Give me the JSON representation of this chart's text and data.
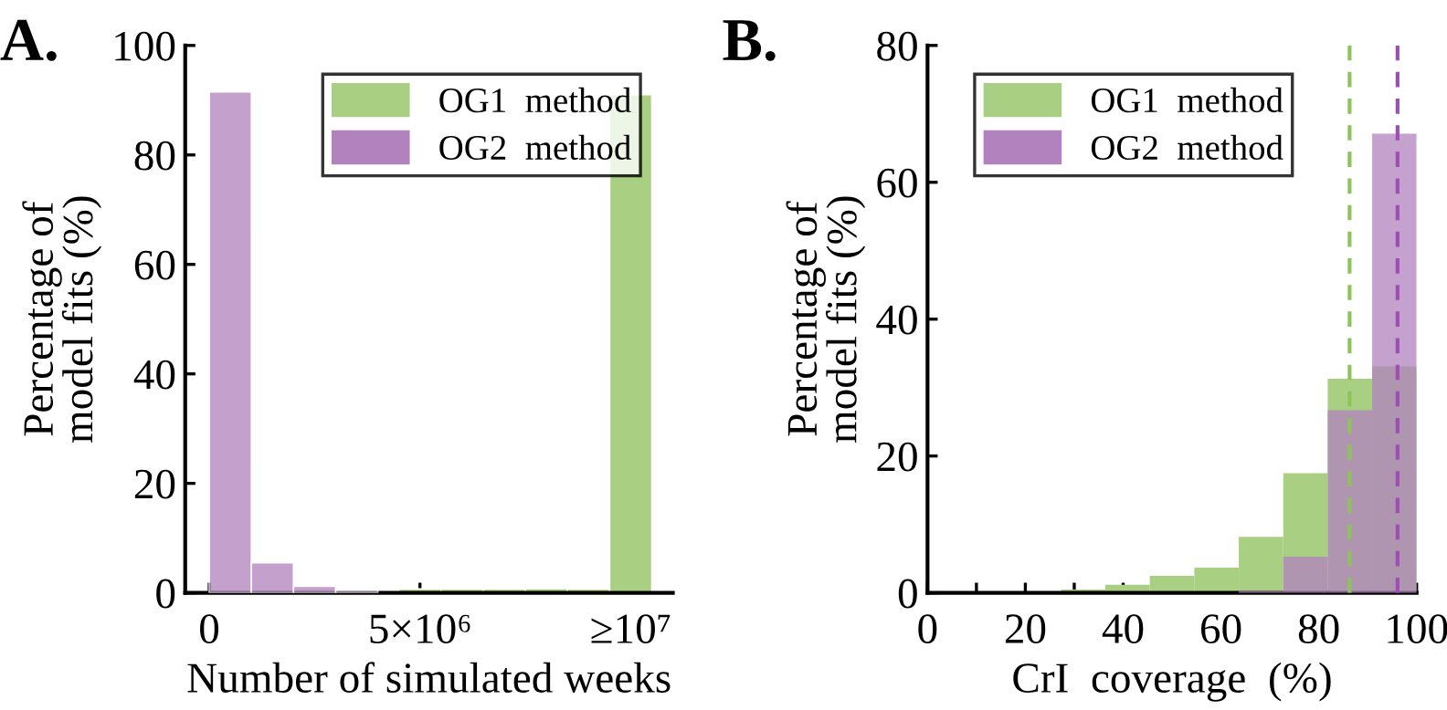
{
  "chart_data": [
    {
      "type": "bar",
      "title": "A.",
      "xlabel": "Number of simulated weeks",
      "ylabel": "Percentage of\nmodel fits (%)",
      "series": [
        {
          "name": "OG1  method",
          "color": "#a9cf83",
          "x": [
            5000000,
            6000000,
            7000000,
            8000000,
            9000000,
            10000000
          ],
          "values": [
            0.7,
            0.7,
            0.7,
            0.8,
            0.7,
            91
          ]
        },
        {
          "name": "OG2  method",
          "color": "#b182bd",
          "x": [
            500000,
            1500000,
            2500000,
            3500000
          ],
          "values": [
            91.5,
            5.5,
            1.2,
            0.5
          ]
        }
      ],
      "xlim": [
        -570000,
        11000000
      ],
      "xticks": [
        0,
        {
          "value": 5000000,
          "label": "5×10⁶"
        },
        {
          "value": 10000000,
          "label": "≥10⁷"
        }
      ],
      "ylim": [
        0,
        100
      ],
      "yticks": [
        0,
        20,
        40,
        60,
        80,
        100
      ],
      "legend": "top right",
      "grid": false
    },
    {
      "type": "histogram",
      "title": "B.",
      "xlabel": "CrI  coverage  (%)",
      "ylabel": "Percentage of\nmodel fits (%)",
      "bins": [
        0,
        9.09,
        18.18,
        27.27,
        36.36,
        45.45,
        54.55,
        63.64,
        72.73,
        81.82,
        90.91,
        100
      ],
      "series": [
        {
          "name": "OG1  method",
          "color": "#a9cf83",
          "values": [
            0,
            0,
            0.1,
            0.5,
            1.2,
            2.5,
            3.7,
            8.2,
            17.5,
            31.3,
            33.1
          ]
        },
        {
          "name": "OG2  method",
          "color": "#b182bd",
          "values": [
            0,
            0,
            0,
            0,
            0,
            0,
            0,
            0.3,
            5.3,
            26.7,
            67.1
          ]
        }
      ],
      "ref_lines": [
        {
          "axis": "x",
          "value": 86.3,
          "color": "#8cc35a",
          "line_style": "dashed"
        },
        {
          "axis": "x",
          "value": 96.1,
          "color": "#9b4fb0",
          "line_style": "dashed"
        }
      ],
      "xlim": [
        0,
        100
      ],
      "xticks": [
        0,
        {
          "value": 10,
          "label": null
        },
        20,
        {
          "value": 30,
          "label": null
        },
        40,
        {
          "value": 50,
          "label": null
        },
        60,
        {
          "value": 70,
          "label": null
        },
        80,
        {
          "value": 90,
          "label": null
        },
        100
      ],
      "ylim": [
        0,
        80
      ],
      "yticks": [
        0,
        20,
        40,
        60,
        80
      ],
      "legend": "top left",
      "grid": false
    }
  ]
}
